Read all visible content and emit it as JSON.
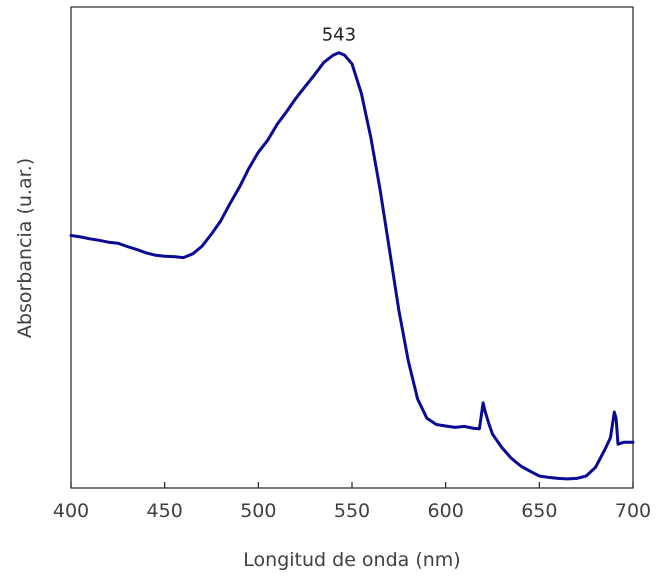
{
  "chart_data": {
    "type": "line",
    "xlabel": "Longitud de onda (nm)",
    "ylabel": "Absorbancia (u.ar.)",
    "xlim": [
      400,
      700
    ],
    "ylim": [
      0,
      100
    ],
    "xticks": [
      400,
      450,
      500,
      550,
      600,
      650,
      700
    ],
    "yticks_shown": false,
    "grid": false,
    "annotations": [
      {
        "text": "543",
        "x": 543,
        "y": 90.5
      }
    ],
    "series": [
      {
        "color": "#0a0a96",
        "x": [
          400,
          405,
          410,
          415,
          420,
          425,
          430,
          435,
          440,
          445,
          450,
          455,
          460,
          465,
          470,
          475,
          480,
          485,
          490,
          495,
          500,
          505,
          510,
          515,
          520,
          525,
          530,
          535,
          540,
          543,
          546,
          550,
          555,
          560,
          565,
          570,
          575,
          580,
          585,
          590,
          595,
          600,
          605,
          610,
          615,
          618,
          620,
          621,
          623,
          625,
          630,
          635,
          640,
          645,
          650,
          655,
          660,
          665,
          670,
          675,
          680,
          685,
          688,
          690,
          691,
          692,
          695,
          700
        ],
        "y": [
          52.5,
          52.2,
          51.8,
          51.5,
          51.1,
          50.9,
          50.2,
          49.6,
          48.9,
          48.4,
          48.2,
          48.1,
          47.9,
          48.7,
          50.3,
          52.8,
          55.6,
          59.2,
          62.6,
          66.5,
          69.8,
          72.3,
          75.6,
          78.2,
          81.0,
          83.5,
          85.9,
          88.5,
          90.0,
          90.5,
          90.0,
          88.2,
          82.0,
          73.0,
          62.0,
          49.5,
          37.0,
          26.5,
          18.5,
          14.5,
          13.2,
          12.9,
          12.6,
          12.8,
          12.4,
          12.3,
          17.7,
          16.0,
          13.4,
          11.2,
          8.4,
          6.2,
          4.6,
          3.5,
          2.5,
          2.2,
          2.0,
          1.9,
          2.0,
          2.5,
          4.3,
          8.0,
          10.5,
          15.8,
          14.5,
          9.1,
          9.5,
          9.5
        ]
      }
    ]
  }
}
